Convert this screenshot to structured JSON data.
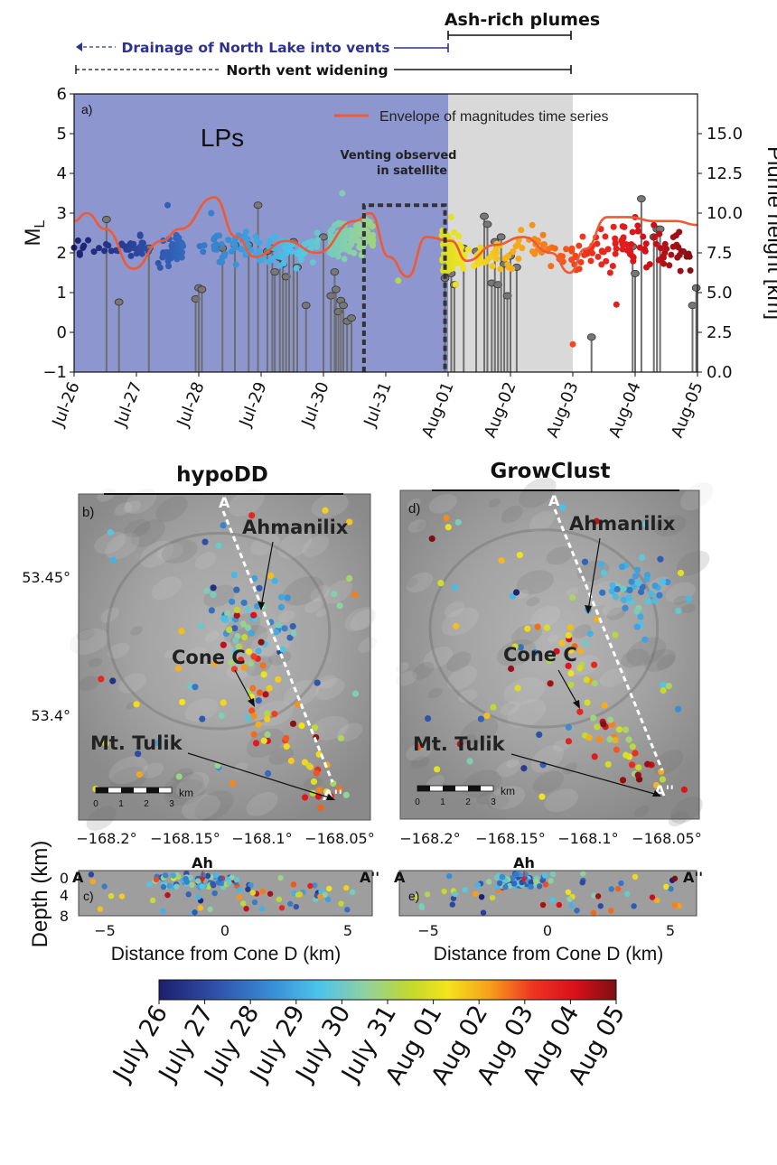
{
  "colors": {
    "lp_band": "#8d96cf",
    "ash_band": "#d9d9d9",
    "envelope": "#ef5a35",
    "drainage_text": "#2e3192",
    "stem": "#6e6e6e",
    "map_bg": "#9b9b9b",
    "section_bg": "#9e9e9e",
    "ah_marker": "#e0201b"
  },
  "timeline": {
    "ash_plumes": "Ash-rich plumes",
    "drainage": "Drainage of North Lake into vents",
    "widening": "North vent widening"
  },
  "chart_data": [
    {
      "panel": "a)",
      "type": "scatter",
      "ylabel": "M_L",
      "y2label": "Plume height [km]",
      "ylim": [
        -1,
        6
      ],
      "y2lim": [
        0,
        17.5
      ],
      "yticks": [
        "6",
        "5",
        "4",
        "3",
        "2",
        "1",
        "0",
        "−1"
      ],
      "y2ticks": [
        "15.0",
        "12.5",
        "10.0",
        "7.5",
        "5.0",
        "2.5",
        "0.0"
      ],
      "xticks": [
        "Jul-26",
        "Jul-27",
        "Jul-28",
        "Jul-29",
        "Jul-30",
        "Jul-31",
        "Aug-01",
        "Aug-02",
        "Aug-03",
        "Aug-04",
        "Aug-05"
      ],
      "legend": "Envelope of magnitudes time series",
      "lp_label": "LPs",
      "venting_label_1": "Venting observed",
      "venting_label_2": "in satellite",
      "lp_period": [
        0,
        6.0
      ],
      "ash_period": [
        6.0,
        8.0
      ],
      "venting_window": [
        4.65,
        5.95
      ],
      "venting_height_km": 10.5,
      "plume_heights_km": [
        [
          0.52,
          9.6
        ],
        [
          0.72,
          4.4
        ],
        [
          1.2,
          7.8
        ],
        [
          1.95,
          4.6
        ],
        [
          2.0,
          5.3
        ],
        [
          2.05,
          5.2
        ],
        [
          2.38,
          7.8
        ],
        [
          2.58,
          8.0
        ],
        [
          2.8,
          8.0
        ],
        [
          2.95,
          10.5
        ],
        [
          3.1,
          7.6
        ],
        [
          3.18,
          7.8
        ],
        [
          3.22,
          6.3
        ],
        [
          3.3,
          7.2
        ],
        [
          3.35,
          6.8
        ],
        [
          3.4,
          6.0
        ],
        [
          3.45,
          7.8
        ],
        [
          3.52,
          8.2
        ],
        [
          3.58,
          6.6
        ],
        [
          3.72,
          4.2
        ],
        [
          4.0,
          8.5
        ],
        [
          4.12,
          4.8
        ],
        [
          4.18,
          6.3
        ],
        [
          4.2,
          5.2
        ],
        [
          4.24,
          3.8
        ],
        [
          4.28,
          4.5
        ],
        [
          4.32,
          4.2
        ],
        [
          4.38,
          3.2
        ],
        [
          4.45,
          3.4
        ],
        [
          5.95,
          5.9
        ],
        [
          6.05,
          6.2
        ],
        [
          6.1,
          5.5
        ],
        [
          6.25,
          7.8
        ],
        [
          6.45,
          7.6
        ],
        [
          6.58,
          9.8
        ],
        [
          6.63,
          9.3
        ],
        [
          6.7,
          5.6
        ],
        [
          6.75,
          8.2
        ],
        [
          6.8,
          5.5
        ],
        [
          6.85,
          8.5
        ],
        [
          6.9,
          6.8
        ],
        [
          6.95,
          4.8
        ],
        [
          7.0,
          7.3
        ],
        [
          7.1,
          6.6
        ],
        [
          8.3,
          2.2
        ],
        [
          8.96,
          7.9
        ],
        [
          9.0,
          6.2
        ],
        [
          9.1,
          10.9
        ],
        [
          9.3,
          8.5
        ],
        [
          9.35,
          9.0
        ],
        [
          9.4,
          9.0
        ],
        [
          9.92,
          4.2
        ],
        [
          9.98,
          5.3
        ]
      ],
      "envelope_ml": [
        [
          0,
          2.8
        ],
        [
          0.2,
          3.0
        ],
        [
          0.5,
          2.6
        ],
        [
          0.95,
          1.6
        ],
        [
          1.4,
          2.3
        ],
        [
          1.7,
          2.6
        ],
        [
          2.25,
          3.4
        ],
        [
          2.6,
          2.4
        ],
        [
          2.9,
          1.9
        ],
        [
          3.4,
          2.3
        ],
        [
          3.9,
          2.0
        ],
        [
          4.5,
          2.8
        ],
        [
          4.75,
          3.0
        ],
        [
          5.05,
          1.9
        ],
        [
          5.35,
          1.4
        ],
        [
          5.65,
          2.4
        ],
        [
          6.05,
          2.3
        ],
        [
          6.3,
          1.8
        ],
        [
          6.75,
          2.2
        ],
        [
          7.2,
          2.4
        ],
        [
          7.65,
          2.0
        ],
        [
          7.95,
          1.5
        ],
        [
          8.2,
          2.1
        ],
        [
          8.55,
          2.9
        ],
        [
          8.9,
          2.9
        ],
        [
          9.3,
          2.8
        ],
        [
          9.65,
          2.8
        ],
        [
          10.0,
          2.7
        ]
      ],
      "colorbar_ticks": [
        "July 26",
        "July 27",
        "July 28",
        "July 29",
        "July 30",
        "July 31",
        "Aug 01",
        "Aug 02",
        "Aug 03",
        "Aug 04",
        "Aug 05"
      ]
    },
    {
      "panel": "b)",
      "type": "scatter",
      "title": "hypoDD",
      "yticks": [
        "53.45°",
        "53.4°"
      ],
      "xticks": [
        "−168.2°",
        "−168.15°",
        "−168.1°",
        "−168.05°"
      ],
      "labels": {
        "ahmanilix": "Ahmanilix",
        "cone_c": "Cone C",
        "tulik": "Mt. Tulik",
        "a": "A",
        "a2": "A''"
      },
      "scale": [
        "0",
        "1",
        "2",
        "3"
      ],
      "scale_unit": "km"
    },
    {
      "panel": "d)",
      "type": "scatter",
      "title": "GrowClust",
      "yticks": [
        "53.45°",
        "53.4°"
      ],
      "xticks": [
        "−168.2°",
        "−168.15°",
        "−168.1°",
        "−168.05°"
      ],
      "labels": {
        "ahmanilix": "Ahmanilix",
        "cone_c": "Cone C",
        "tulik": "Mt. Tulik",
        "a": "A",
        "a2": "A''"
      },
      "scale": [
        "0",
        "1",
        "2",
        "3"
      ],
      "scale_unit": "km"
    },
    {
      "panel": "c)",
      "type": "scatter",
      "xlabel": "Distance from Cone D (km)",
      "ylabel": "Depth (km)",
      "xlim": [
        -6,
        6
      ],
      "ylim": [
        0,
        8
      ],
      "xticks": [
        "−5",
        "0",
        "5"
      ],
      "yticks": [
        "0",
        "4",
        "8"
      ],
      "ends": [
        "A",
        "A''"
      ],
      "marker": "Ah"
    },
    {
      "panel": "e)",
      "type": "scatter",
      "xlabel": "Distance from Cone D (km)",
      "xlim": [
        -6,
        6
      ],
      "ylim": [
        0,
        8
      ],
      "xticks": [
        "−5",
        "0",
        "5"
      ],
      "ends": [
        "A",
        "A''"
      ],
      "marker": "Ah"
    }
  ]
}
